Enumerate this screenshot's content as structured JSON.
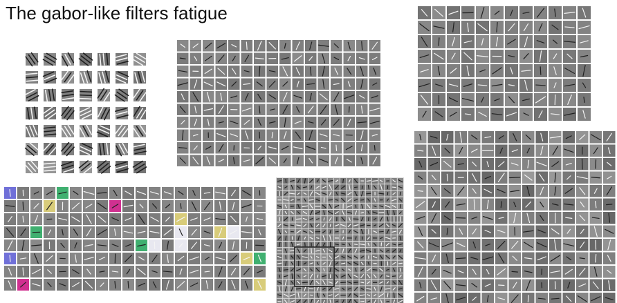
{
  "title": "The gabor-like filters fatigue"
}
